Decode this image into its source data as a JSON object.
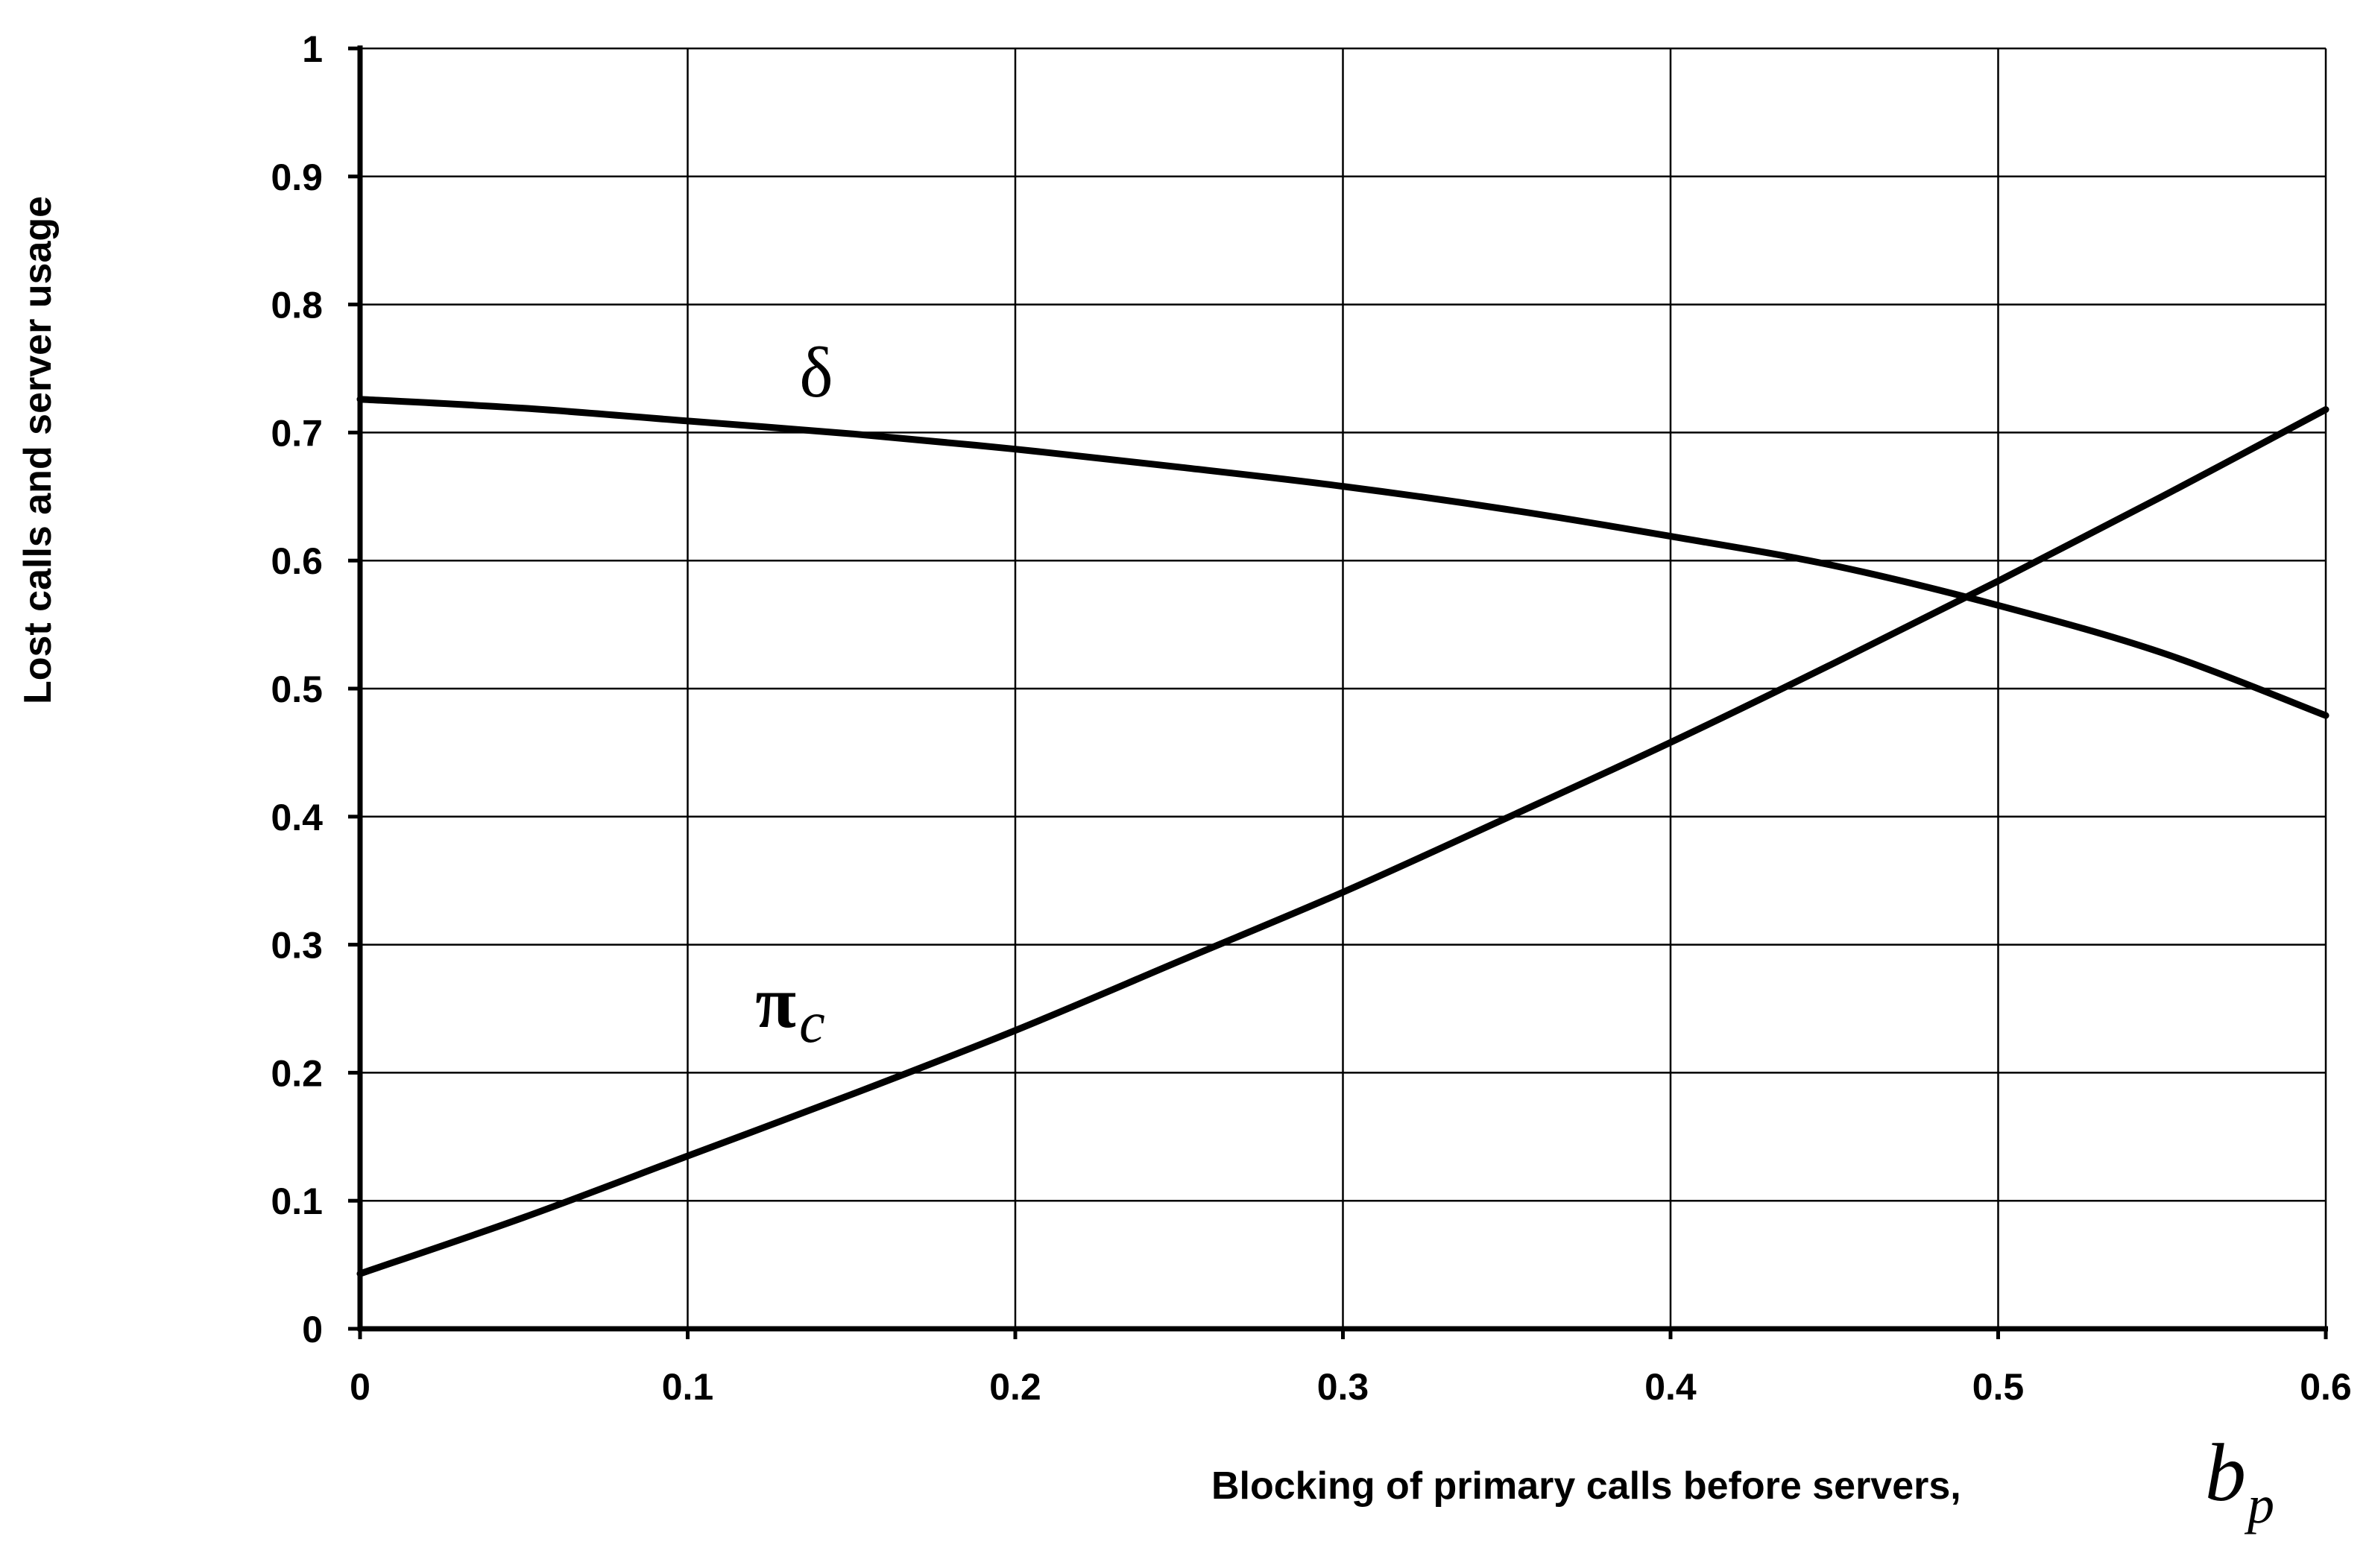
{
  "chart_data": {
    "type": "line",
    "xlabel": "Blocking of primary calls before servers,",
    "xlabel_symbol": "b",
    "xlabel_symbol_sub": "p",
    "ylabel": "Lost calls and server usage",
    "xlim": [
      0,
      0.6
    ],
    "ylim": [
      0,
      1
    ],
    "grid": true,
    "x_ticks": [
      "0",
      "0.1",
      "0.2",
      "0.3",
      "0.4",
      "0.5",
      "0.6"
    ],
    "y_ticks": [
      "0",
      "0.1",
      "0.2",
      "0.3",
      "0.4",
      "0.5",
      "0.6",
      "0.7",
      "0.8",
      "0.9",
      "1"
    ],
    "series": [
      {
        "name": "δ",
        "label_sub": "",
        "x": [
          0,
          0.05,
          0.1,
          0.15,
          0.2,
          0.25,
          0.3,
          0.35,
          0.4,
          0.45,
          0.5,
          0.55,
          0.6
        ],
        "y": [
          0.726,
          0.719,
          0.709,
          0.699,
          0.687,
          0.673,
          0.658,
          0.64,
          0.619,
          0.596,
          0.565,
          0.528,
          0.479
        ]
      },
      {
        "name": "π",
        "label_sub": "c",
        "x": [
          0,
          0.05,
          0.1,
          0.15,
          0.2,
          0.25,
          0.3,
          0.35,
          0.4,
          0.45,
          0.5,
          0.55,
          0.6
        ],
        "y": [
          0.043,
          0.087,
          0.135,
          0.183,
          0.233,
          0.287,
          0.341,
          0.399,
          0.458,
          0.52,
          0.584,
          0.65,
          0.718
        ]
      }
    ]
  }
}
